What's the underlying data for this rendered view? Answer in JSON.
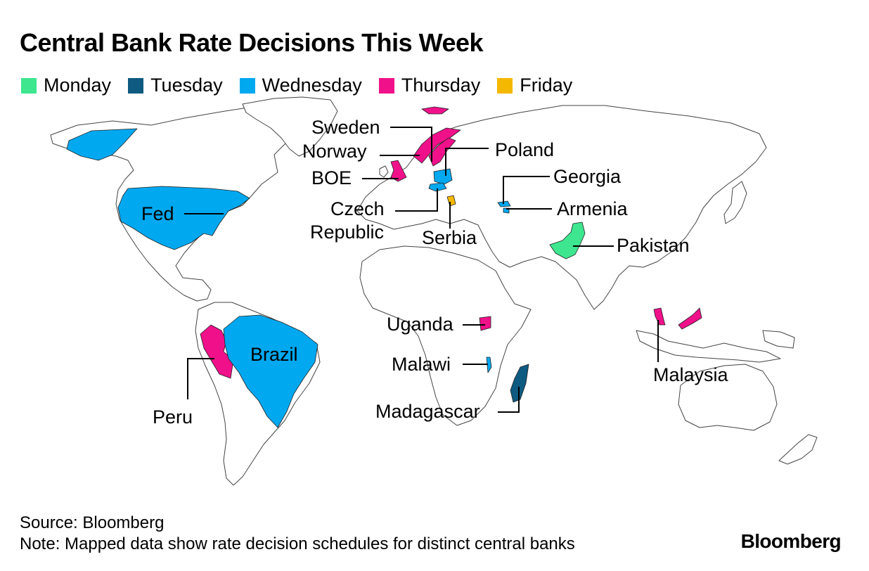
{
  "title": "Central Bank Rate Decisions This Week",
  "legend": [
    {
      "label": "Monday",
      "color": "#3de68f"
    },
    {
      "label": "Tuesday",
      "color": "#0e5a80"
    },
    {
      "label": "Wednesday",
      "color": "#00a8f0"
    },
    {
      "label": "Thursday",
      "color": "#f0118a"
    },
    {
      "label": "Friday",
      "color": "#f5b800"
    }
  ],
  "labels": {
    "sweden": "Sweden",
    "norway": "Norway",
    "boe": "BOE",
    "poland": "Poland",
    "georgia": "Georgia",
    "armenia": "Armenia",
    "czech_1": "Czech",
    "czech_2": "Republic",
    "serbia": "Serbia",
    "pakistan": "Pakistan",
    "fed": "Fed",
    "brazil": "Brazil",
    "peru": "Peru",
    "uganda": "Uganda",
    "malawi": "Malawi",
    "madagascar": "Madagascar",
    "malaysia": "Malaysia"
  },
  "decisions": [
    {
      "bank": "Pakistan",
      "day": "Monday"
    },
    {
      "bank": "Madagascar",
      "day": "Tuesday"
    },
    {
      "bank": "Fed",
      "day": "Wednesday"
    },
    {
      "bank": "Brazil",
      "day": "Wednesday"
    },
    {
      "bank": "Poland",
      "day": "Wednesday"
    },
    {
      "bank": "Czech Republic",
      "day": "Wednesday"
    },
    {
      "bank": "Georgia",
      "day": "Wednesday"
    },
    {
      "bank": "Armenia",
      "day": "Wednesday"
    },
    {
      "bank": "Malawi",
      "day": "Wednesday"
    },
    {
      "bank": "BOE",
      "day": "Thursday"
    },
    {
      "bank": "Norway",
      "day": "Thursday"
    },
    {
      "bank": "Sweden",
      "day": "Thursday"
    },
    {
      "bank": "Peru",
      "day": "Thursday"
    },
    {
      "bank": "Uganda",
      "day": "Thursday"
    },
    {
      "bank": "Malaysia",
      "day": "Thursday"
    },
    {
      "bank": "Serbia",
      "day": "Friday"
    }
  ],
  "source": "Source: Bloomberg",
  "note": "Note: Mapped data show rate decision schedules for distinct central banks",
  "brand": "Bloomberg"
}
